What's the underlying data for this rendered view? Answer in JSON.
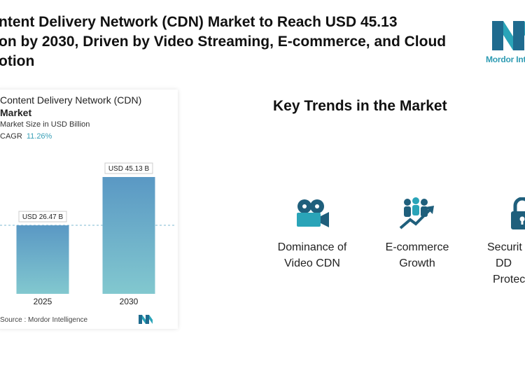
{
  "headline": {
    "line1": "ntent Delivery Network (CDN) Market to Reach USD 45.13",
    "line2": "on by 2030, Driven by Video Streaming, E-commerce, and Cloud",
    "line3": "otion"
  },
  "brand": {
    "logo_text": "Mordor Inte"
  },
  "chart_card": {
    "title_line1": "Content Delivery Network (CDN)",
    "title_line2": "Market",
    "subtitle": "Market Size in USD Billion",
    "cagr_label": "CAGR",
    "cagr_value": "11.26%",
    "source": "Source : Mordor Intelligence"
  },
  "chart_data": {
    "type": "bar",
    "title": "Content Delivery Network (CDN) Market",
    "subtitle": "Market Size in USD Billion",
    "categories": [
      "2025",
      "2030"
    ],
    "values": [
      26.47,
      45.13
    ],
    "data_labels": [
      "USD 26.47 B",
      "USD 45.13 B"
    ],
    "ylim": [
      0,
      50
    ],
    "grid": false,
    "colors": {
      "bar_top": "#5a98c4",
      "bar_bottom": "#82c8cf",
      "reference_line": "#7cb8d0"
    }
  },
  "trends": {
    "heading": "Key Trends in the Market",
    "items": [
      {
        "icon": "video-camera-icon",
        "line1": "Dominance of",
        "line2": "Video CDN",
        "line3": ""
      },
      {
        "icon": "growth-people-icon",
        "line1": "E-commerce",
        "line2": "Growth",
        "line3": ""
      },
      {
        "icon": "lock-icon",
        "line1": "Securit",
        "line2": "DD",
        "line3": "Protec"
      }
    ]
  },
  "colors": {
    "accent": "#2e9bb3",
    "icon_dark": "#1f5f7c",
    "icon_teal": "#2aa4b8"
  }
}
